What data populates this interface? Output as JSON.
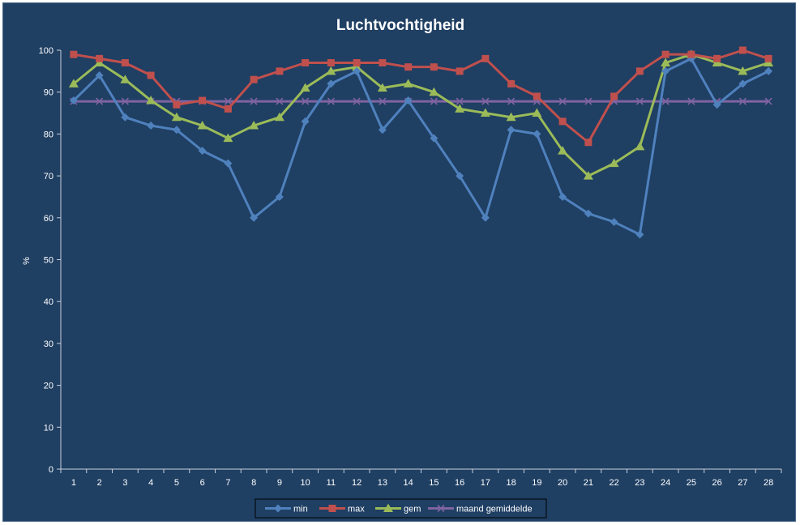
{
  "chart_data": {
    "type": "line",
    "title": "Luchtvochtigheid",
    "xlabel": "",
    "ylabel": "%",
    "ylim": [
      0,
      100
    ],
    "yticks": [
      0,
      10,
      20,
      30,
      40,
      50,
      60,
      70,
      80,
      90,
      100
    ],
    "grid": false,
    "legend_position": "bottom",
    "categories": [
      "1",
      "2",
      "3",
      "4",
      "5",
      "6",
      "7",
      "8",
      "9",
      "10",
      "11",
      "12",
      "13",
      "14",
      "15",
      "16",
      "17",
      "18",
      "19",
      "20",
      "21",
      "22",
      "23",
      "24",
      "25",
      "26",
      "27",
      "28"
    ],
    "series": [
      {
        "name": "min",
        "color": "#4f81bd",
        "marker": "diamond",
        "values": [
          88,
          94,
          84,
          82,
          81,
          76,
          73,
          60,
          65,
          83,
          92,
          95,
          81,
          88,
          79,
          70,
          60,
          81,
          80,
          65,
          61,
          59,
          56,
          95,
          98,
          87,
          92,
          95
        ]
      },
      {
        "name": "max",
        "color": "#c0504d",
        "marker": "square",
        "values": [
          99,
          98,
          97,
          94,
          87,
          88,
          86,
          93,
          95,
          97,
          97,
          97,
          97,
          96,
          96,
          95,
          98,
          92,
          89,
          83,
          78,
          89,
          95,
          99,
          99,
          98,
          100,
          98
        ]
      },
      {
        "name": "gem",
        "color": "#9bbb59",
        "marker": "triangle",
        "values": [
          92,
          97,
          93,
          88,
          84,
          82,
          79,
          82,
          84,
          91,
          95,
          96,
          91,
          92,
          90,
          86,
          85,
          84,
          85,
          76,
          70,
          73,
          77,
          97,
          99,
          97,
          95,
          97
        ]
      },
      {
        "name": "maand gemiddelde",
        "color": "#8064a2",
        "marker": "x",
        "values": [
          87.8,
          87.8,
          87.8,
          87.8,
          87.8,
          87.8,
          87.8,
          87.8,
          87.8,
          87.8,
          87.8,
          87.8,
          87.8,
          87.8,
          87.8,
          87.8,
          87.8,
          87.8,
          87.8,
          87.8,
          87.8,
          87.8,
          87.8,
          87.8,
          87.8,
          87.8,
          87.8,
          87.8
        ]
      }
    ]
  }
}
